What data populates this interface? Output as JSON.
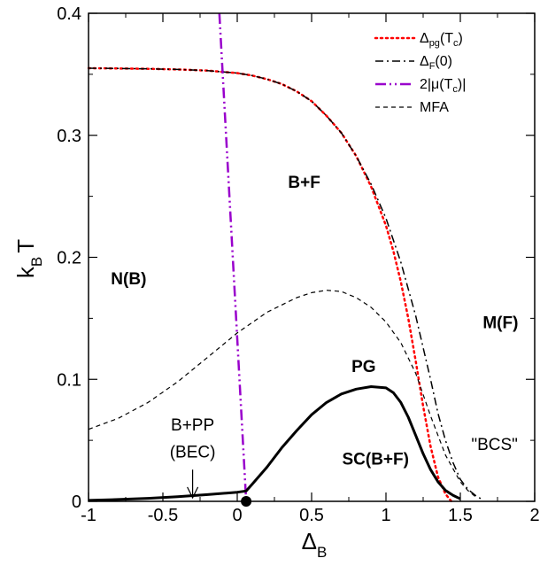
{
  "chart_data": {
    "type": "line",
    "xlim": [
      -1,
      2
    ],
    "ylim": [
      0,
      0.4
    ],
    "x_ticks": [
      -1,
      -0.5,
      0,
      0.5,
      1,
      1.5,
      2
    ],
    "x_tick_labels": [
      "-1",
      "-0.5",
      "0",
      "0.5",
      "1",
      "1.5",
      "2"
    ],
    "y_ticks": [
      0,
      0.1,
      0.2,
      0.3,
      0.4
    ],
    "y_tick_labels": [
      "0",
      "0.1",
      "0.2",
      "0.3",
      "0.4"
    ],
    "xlabel": {
      "main": "Δ",
      "sub": "B"
    },
    "ylabel": {
      "main": "k",
      "sub": "B",
      "tail": "T"
    },
    "legend_position": "top-right",
    "series": [
      {
        "name": "Δpg(Tc)",
        "legend_parts": [
          {
            "t": "Δ"
          },
          {
            "t": "pg",
            "sub": true
          },
          {
            "t": "(T"
          },
          {
            "t": "c",
            "sub": true
          },
          {
            "t": ")"
          }
        ],
        "color": "#ff0000",
        "style": "dotted",
        "width": 2.5,
        "points": [
          [
            -1,
            0.355
          ],
          [
            -0.8,
            0.3548
          ],
          [
            -0.6,
            0.3545
          ],
          [
            -0.4,
            0.354
          ],
          [
            -0.2,
            0.353
          ],
          [
            0,
            0.351
          ],
          [
            0.1,
            0.349
          ],
          [
            0.2,
            0.346
          ],
          [
            0.3,
            0.342
          ],
          [
            0.4,
            0.336
          ],
          [
            0.5,
            0.328
          ],
          [
            0.6,
            0.316
          ],
          [
            0.7,
            0.302
          ],
          [
            0.8,
            0.283
          ],
          [
            0.9,
            0.258
          ],
          [
            1.0,
            0.226
          ],
          [
            1.05,
            0.205
          ],
          [
            1.1,
            0.18
          ],
          [
            1.15,
            0.15
          ],
          [
            1.2,
            0.115
          ],
          [
            1.25,
            0.078
          ],
          [
            1.3,
            0.045
          ],
          [
            1.35,
            0.02
          ],
          [
            1.4,
            0.006
          ],
          [
            1.44,
            0.0
          ]
        ]
      },
      {
        "name": "ΔF(0)",
        "legend_parts": [
          {
            "t": "Δ"
          },
          {
            "t": "F",
            "sub": true
          },
          {
            "t": "(0)"
          }
        ],
        "color": "#000000",
        "style": "dashdot",
        "width": 1.5,
        "points": [
          [
            -1,
            0.355
          ],
          [
            -0.8,
            0.3548
          ],
          [
            -0.6,
            0.3545
          ],
          [
            -0.4,
            0.354
          ],
          [
            -0.2,
            0.353
          ],
          [
            0,
            0.351
          ],
          [
            0.1,
            0.349
          ],
          [
            0.2,
            0.346
          ],
          [
            0.3,
            0.342
          ],
          [
            0.4,
            0.336
          ],
          [
            0.5,
            0.328
          ],
          [
            0.6,
            0.316
          ],
          [
            0.7,
            0.302
          ],
          [
            0.8,
            0.283
          ],
          [
            0.9,
            0.26
          ],
          [
            1.0,
            0.232
          ],
          [
            1.1,
            0.196
          ],
          [
            1.2,
            0.152
          ],
          [
            1.3,
            0.1
          ],
          [
            1.35,
            0.072
          ],
          [
            1.4,
            0.05
          ],
          [
            1.45,
            0.032
          ],
          [
            1.5,
            0.018
          ],
          [
            1.55,
            0.01
          ],
          [
            1.6,
            0.005
          ],
          [
            1.64,
            0.002
          ]
        ]
      },
      {
        "name": "2|μ(Tc)|",
        "legend_parts": [
          {
            "t": "2|μ(T"
          },
          {
            "t": "c",
            "sub": true
          },
          {
            "t": ")|"
          }
        ],
        "color": "#9900cc",
        "style": "dashdotdot",
        "width": 2.5,
        "points": [
          [
            -0.12,
            0.4
          ],
          [
            0.06,
            0.0
          ]
        ]
      },
      {
        "name": "MFA",
        "legend_parts": [
          {
            "t": "MFA"
          }
        ],
        "color": "#000000",
        "style": "dashed",
        "width": 1.2,
        "points": [
          [
            -1,
            0.059
          ],
          [
            -0.8,
            0.068
          ],
          [
            -0.6,
            0.081
          ],
          [
            -0.4,
            0.098
          ],
          [
            -0.2,
            0.118
          ],
          [
            0,
            0.138
          ],
          [
            0.2,
            0.155
          ],
          [
            0.4,
            0.167
          ],
          [
            0.5,
            0.171
          ],
          [
            0.6,
            0.173
          ],
          [
            0.7,
            0.172
          ],
          [
            0.8,
            0.167
          ],
          [
            0.9,
            0.159
          ],
          [
            1.0,
            0.147
          ],
          [
            1.1,
            0.13
          ],
          [
            1.2,
            0.105
          ],
          [
            1.3,
            0.07
          ],
          [
            1.4,
            0.038
          ],
          [
            1.5,
            0.016
          ],
          [
            1.55,
            0.009
          ],
          [
            1.6,
            0.004
          ]
        ]
      },
      {
        "name": "",
        "color": "#000000",
        "style": "solid",
        "width": 3,
        "points": [
          [
            -1,
            0.0008
          ],
          [
            -0.8,
            0.0015
          ],
          [
            -0.6,
            0.0025
          ],
          [
            -0.4,
            0.0038
          ],
          [
            -0.2,
            0.0055
          ],
          [
            0,
            0.0075
          ],
          [
            0.06,
            0.0085
          ],
          [
            0.1,
            0.014
          ],
          [
            0.2,
            0.028
          ],
          [
            0.3,
            0.044
          ],
          [
            0.4,
            0.058
          ],
          [
            0.5,
            0.071
          ],
          [
            0.6,
            0.081
          ],
          [
            0.7,
            0.088
          ],
          [
            0.8,
            0.092
          ],
          [
            0.9,
            0.094
          ],
          [
            1.0,
            0.093
          ],
          [
            1.05,
            0.089
          ],
          [
            1.1,
            0.081
          ],
          [
            1.15,
            0.069
          ],
          [
            1.2,
            0.054
          ],
          [
            1.25,
            0.039
          ],
          [
            1.3,
            0.026
          ],
          [
            1.35,
            0.016
          ],
          [
            1.4,
            0.009
          ],
          [
            1.45,
            0.005
          ],
          [
            1.5,
            0.002
          ]
        ]
      }
    ],
    "marker": {
      "x": 0.06,
      "y": 0.0
    },
    "annotations": [
      {
        "id": "n_b",
        "text": "N(B)",
        "x": -0.73,
        "y": 0.178,
        "bold": true
      },
      {
        "id": "b_f",
        "text": "B+F",
        "x": 0.45,
        "y": 0.257,
        "bold": true
      },
      {
        "id": "m_f",
        "text": "M(F)",
        "x": 1.77,
        "y": 0.142,
        "bold": true
      },
      {
        "id": "pg",
        "text": "PG",
        "x": 0.85,
        "y": 0.106,
        "bold": true
      },
      {
        "id": "sc",
        "text": "SC(B+F)",
        "x": 0.93,
        "y": 0.03,
        "bold": true
      },
      {
        "id": "bcs",
        "text": "\"BCS\"",
        "x": 1.73,
        "y": 0.042,
        "bold": false
      },
      {
        "id": "bpp",
        "text": "B+PP",
        "x": -0.3,
        "y": 0.058,
        "bold": false
      },
      {
        "id": "bec",
        "text": "(BEC)",
        "x": -0.3,
        "y": 0.036,
        "bold": false
      }
    ],
    "arrow": {
      "from": [
        -0.3,
        0.026
      ],
      "to": [
        -0.3,
        0.003
      ]
    }
  }
}
